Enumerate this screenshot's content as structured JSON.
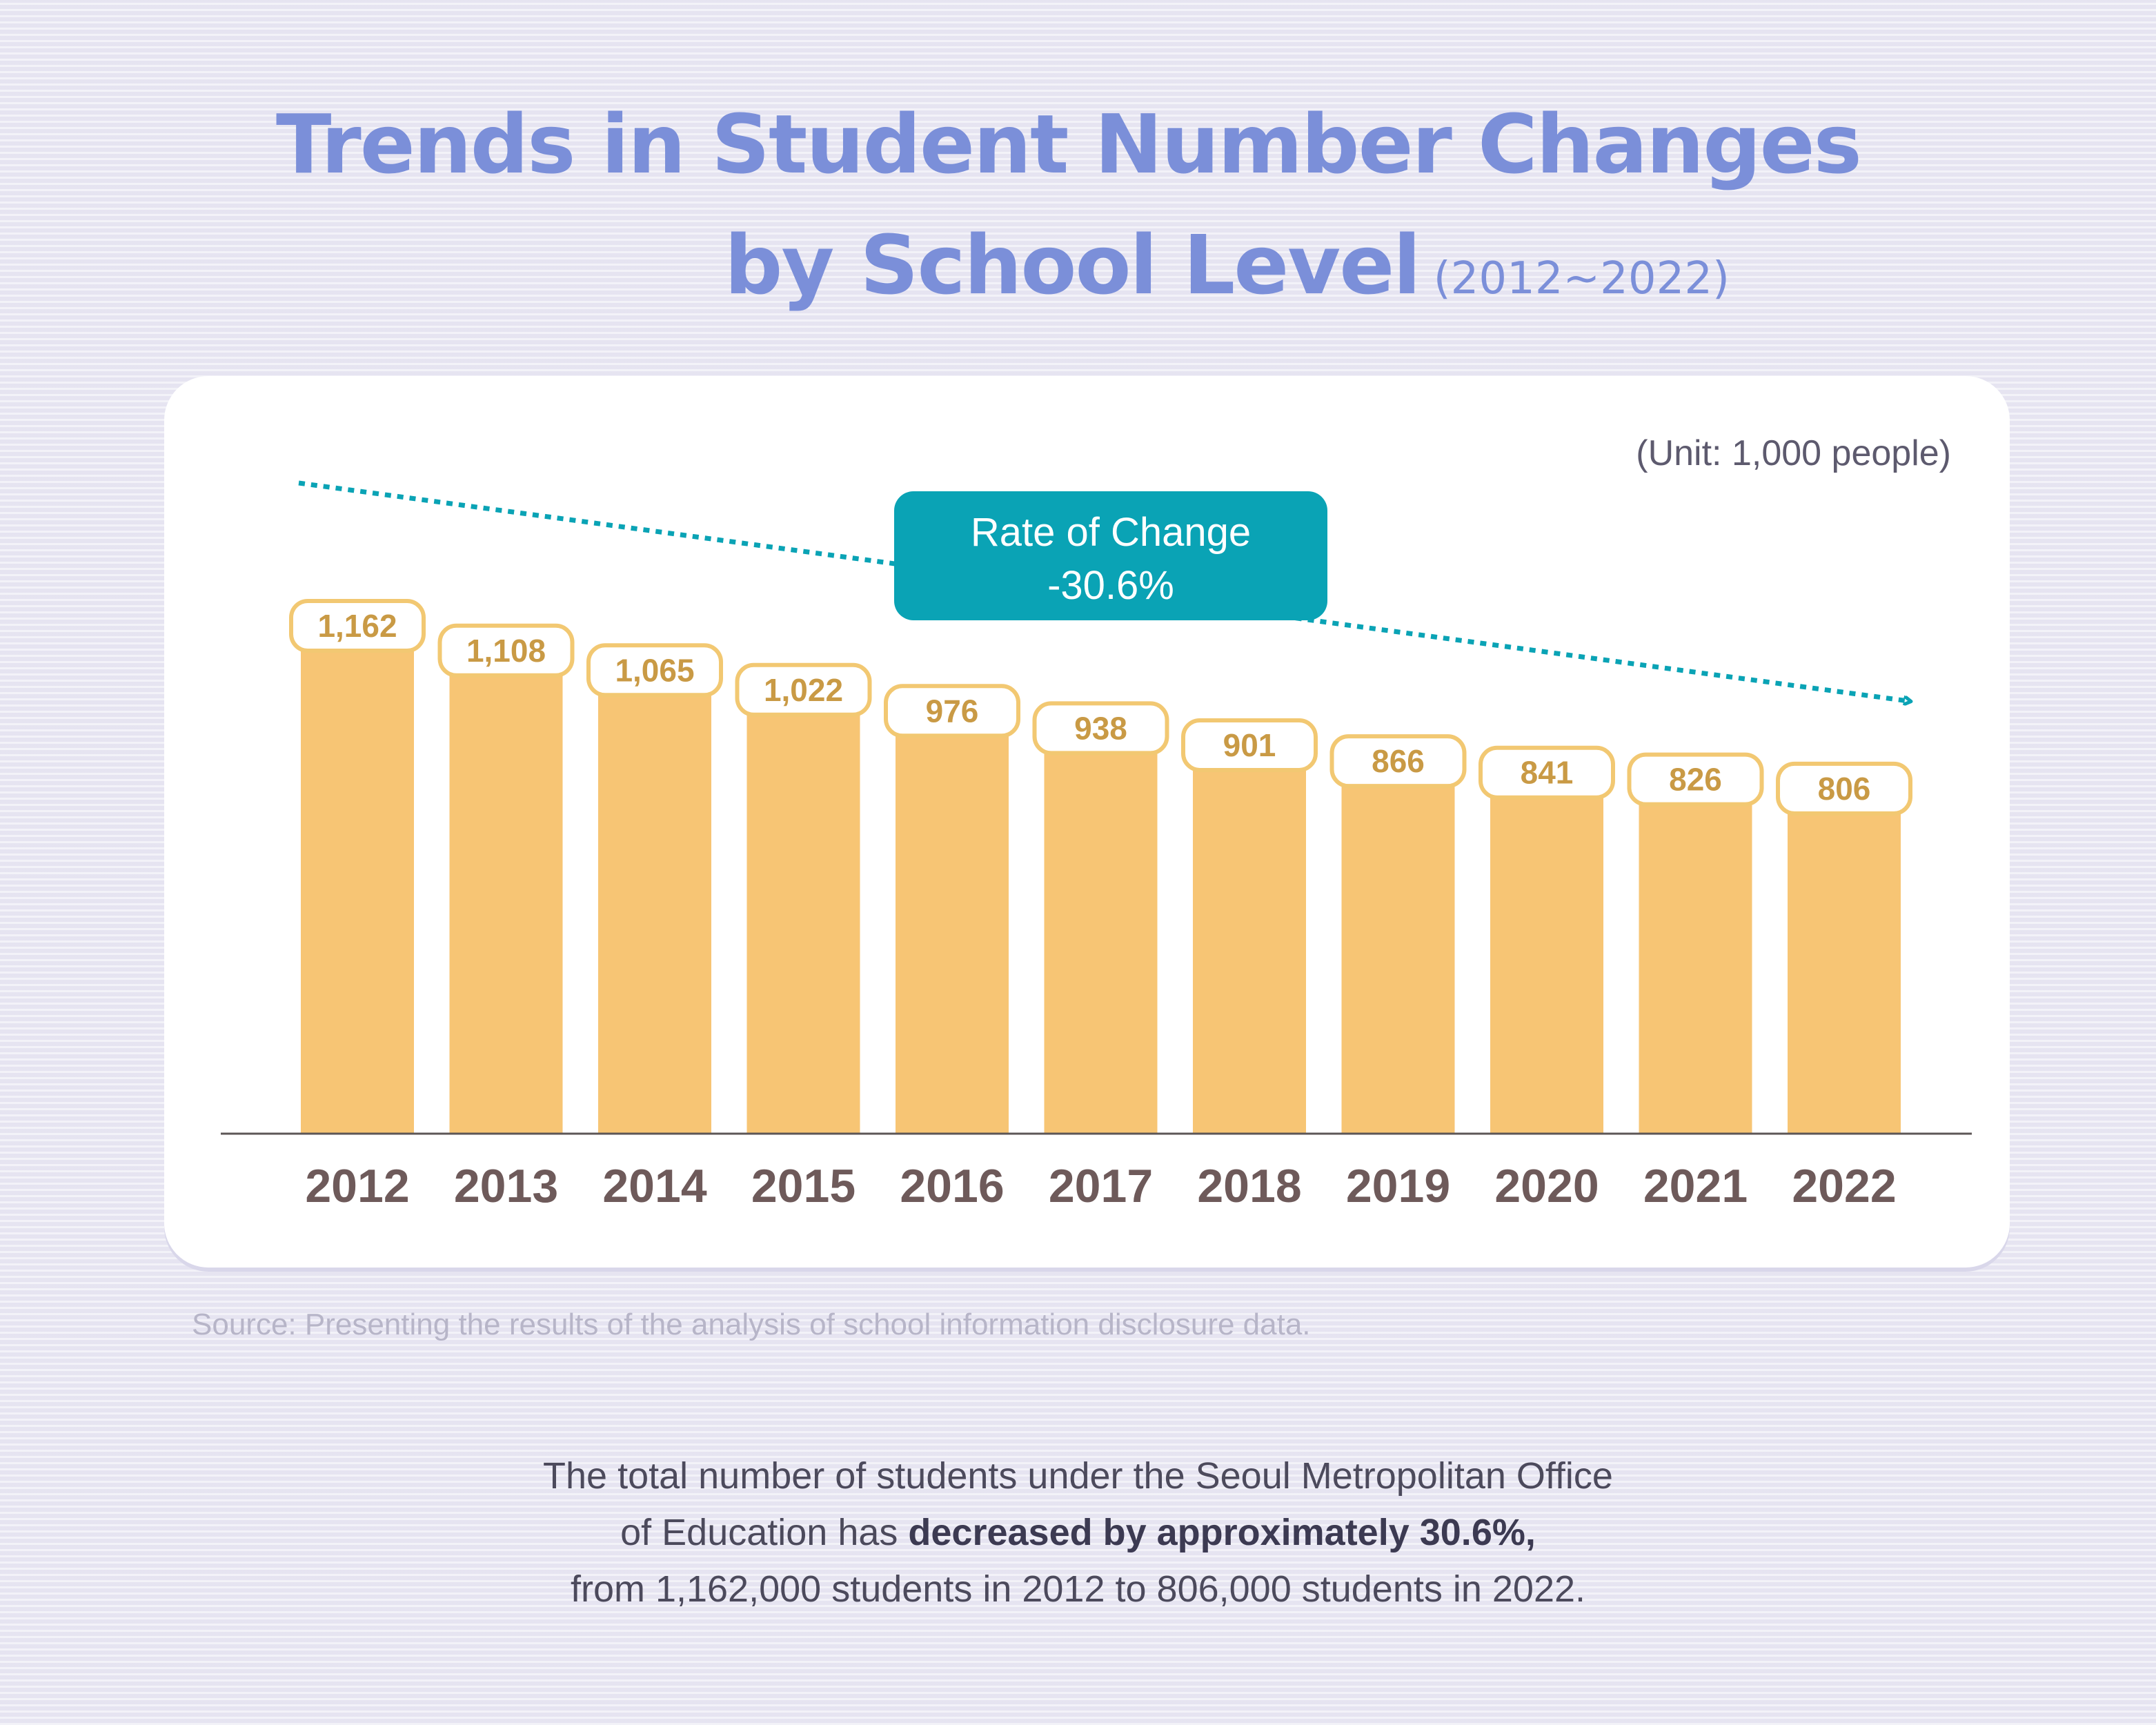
{
  "title": {
    "line1": "Trends in Student Number Changes",
    "line2": "by School Level",
    "range": "(2012~2022)"
  },
  "unit_label": "(Unit: 1,000 people)",
  "source": "Source: Presenting the results of the analysis of school information disclosure data.",
  "summary": {
    "line1": "The total number of students under the Seoul Metropolitan Office",
    "line2_prefix": "of Education has ",
    "line2_bold": "decreased by approximately 30.6%,",
    "line3": "from 1,162,000 students in 2012 to 806,000 students in 2022."
  },
  "colors": {
    "title": "#7b8fd9",
    "bar": "#f7c574",
    "bar_top": "#f5b95f",
    "label_border": "#f2c872",
    "label_text": "#c99a45",
    "trend": "#0aa3b5",
    "axis_text": "#6e5a5a"
  },
  "chart_data": {
    "type": "bar",
    "categories": [
      "2012",
      "2013",
      "2014",
      "2015",
      "2016",
      "2017",
      "2018",
      "2019",
      "2020",
      "2021",
      "2022"
    ],
    "values": [
      1162,
      1108,
      1065,
      1022,
      976,
      938,
      901,
      866,
      841,
      826,
      806
    ],
    "value_labels": [
      "1,162",
      "1,108",
      "1,065",
      "1,022",
      "976",
      "938",
      "901",
      "866",
      "841",
      "826",
      "806"
    ],
    "unit": "1,000 people",
    "ylim": [
      0,
      1162
    ],
    "trend_annotation": {
      "label_line1": "Rate of Change",
      "label_line2": "-30.6%"
    }
  }
}
